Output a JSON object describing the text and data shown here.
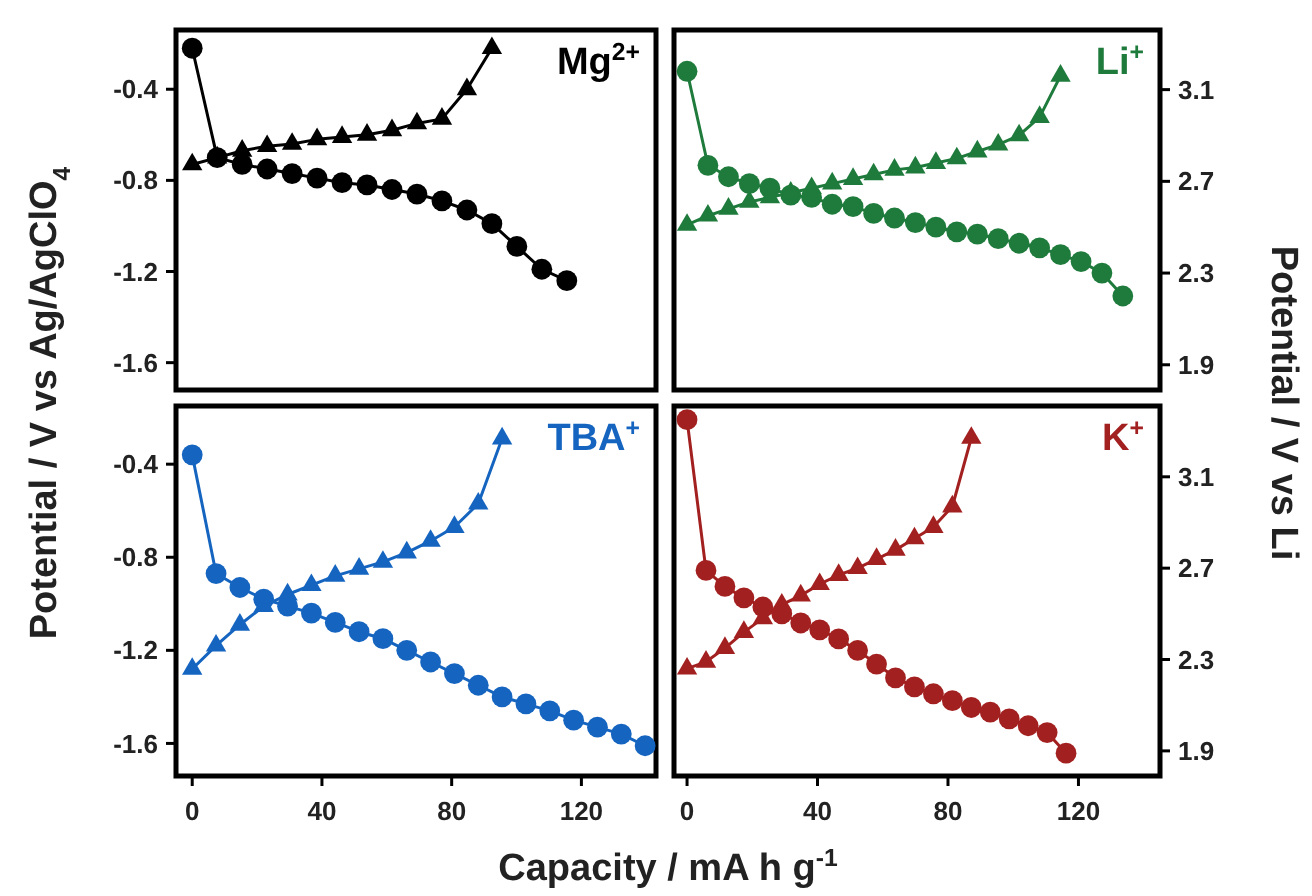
{
  "chart_data": [
    {
      "type": "line",
      "title": "Mg$^{2+}$",
      "ylabel": "Potential / V vs Ag/AgClO$_{4}$",
      "xlim": [
        -5,
        143
      ],
      "ylim": [
        -1.72,
        -0.14
      ],
      "xticks": [
        0,
        40,
        80,
        120
      ],
      "yticks": [
        -0.4,
        -0.8,
        -1.2,
        -1.6
      ],
      "tick_labels": "y",
      "line_style": "solid",
      "series": [
        {
          "color": "#000000",
          "marker": "circle",
          "x": [
            0,
            7.7,
            15.4,
            23.1,
            30.8,
            38.5,
            46.2,
            53.9,
            61.6,
            69.3,
            77,
            84.7,
            92.4,
            100.1,
            107.8,
            115.5
          ],
          "values": [
            -0.22,
            -0.7,
            -0.73,
            -0.75,
            -0.77,
            -0.79,
            -0.81,
            -0.82,
            -0.84,
            -0.86,
            -0.89,
            -0.93,
            -0.99,
            -1.09,
            -1.19,
            -1.24
          ]
        },
        {
          "color": "#000000",
          "marker": "triangle",
          "x": [
            0,
            7.7,
            15.4,
            23.1,
            30.8,
            38.5,
            46.2,
            53.9,
            61.6,
            69.3,
            77,
            84.7,
            92.4
          ],
          "values": [
            -0.73,
            -0.7,
            -0.67,
            -0.65,
            -0.64,
            -0.62,
            -0.61,
            -0.6,
            -0.58,
            -0.55,
            -0.53,
            -0.4,
            -0.22
          ]
        }
      ]
    },
    {
      "type": "line",
      "title": "Li$^{+}$",
      "ylabel": "Potential / V vs Li",
      "xlim": [
        -4,
        145
      ],
      "ylim": [
        1.79,
        3.36
      ],
      "xticks": [
        0,
        40,
        80,
        120
      ],
      "yticks": [
        3.1,
        2.7,
        2.3,
        1.9
      ],
      "tick_labels": "y",
      "line_style": "solid",
      "series": [
        {
          "color": "#1e7b3c",
          "marker": "circle",
          "x": [
            0,
            6.4,
            12.7,
            19.1,
            25.4,
            31.8,
            38.2,
            44.5,
            50.9,
            57.2,
            63.6,
            70,
            76.3,
            82.7,
            89,
            95.4,
            101.8,
            108.1,
            114.5,
            120.8,
            127.2,
            133.6
          ],
          "values": [
            3.18,
            2.77,
            2.72,
            2.69,
            2.67,
            2.64,
            2.63,
            2.6,
            2.59,
            2.56,
            2.54,
            2.52,
            2.5,
            2.48,
            2.47,
            2.45,
            2.43,
            2.41,
            2.38,
            2.35,
            2.3,
            2.2
          ]
        },
        {
          "color": "#1e7b3c",
          "marker": "triangle",
          "x": [
            0,
            6.4,
            12.7,
            19.1,
            25.4,
            31.8,
            38.2,
            44.5,
            50.9,
            57.2,
            63.6,
            70,
            76.3,
            82.7,
            89,
            95.4,
            101.8,
            108.1,
            114.5
          ],
          "values": [
            2.51,
            2.55,
            2.58,
            2.61,
            2.63,
            2.65,
            2.67,
            2.69,
            2.71,
            2.73,
            2.75,
            2.76,
            2.78,
            2.8,
            2.83,
            2.86,
            2.9,
            2.98,
            3.16
          ]
        }
      ]
    },
    {
      "type": "line",
      "title": "TBA$^{+}$",
      "xlabel": "Capacity / mA h g$^{-1}$",
      "xlim": [
        -5,
        143
      ],
      "ylim": [
        -1.74,
        -0.15
      ],
      "xticks": [
        0,
        40,
        80,
        120
      ],
      "yticks": [
        -0.4,
        -0.8,
        -1.2,
        -1.6
      ],
      "line_style": "solid",
      "series": [
        {
          "color": "#1565c0",
          "marker": "circle",
          "x": [
            0,
            7.35,
            14.7,
            22.05,
            29.4,
            36.75,
            44.1,
            51.45,
            58.8,
            66.15,
            73.5,
            80.85,
            88.2,
            95.55,
            102.9,
            110.25,
            117.6,
            124.95,
            132.3,
            139.65
          ],
          "values": [
            -0.36,
            -0.87,
            -0.93,
            -0.98,
            -1.01,
            -1.04,
            -1.08,
            -1.12,
            -1.15,
            -1.2,
            -1.25,
            -1.3,
            -1.35,
            -1.4,
            -1.43,
            -1.46,
            -1.5,
            -1.53,
            -1.56,
            -1.61
          ]
        },
        {
          "color": "#1565c0",
          "marker": "triangle",
          "x": [
            0,
            7.35,
            14.7,
            22.05,
            29.4,
            36.75,
            44.1,
            51.45,
            58.8,
            66.15,
            73.5,
            80.85,
            88.2,
            95.55
          ],
          "values": [
            -1.28,
            -1.18,
            -1.09,
            -1.01,
            -0.96,
            -0.92,
            -0.88,
            -0.85,
            -0.82,
            -0.78,
            -0.73,
            -0.67,
            -0.57,
            -0.29
          ]
        }
      ]
    },
    {
      "type": "line",
      "title": "K$^{+}$",
      "xlim": [
        -4,
        145
      ],
      "ylim": [
        1.79,
        3.41
      ],
      "xticks": [
        0,
        40,
        80,
        120
      ],
      "yticks": [
        3.1,
        2.7,
        2.3,
        1.9
      ],
      "line_style": "solid",
      "series": [
        {
          "color": "#a32020",
          "marker": "circle",
          "x": [
            0,
            5.81,
            11.62,
            17.43,
            23.24,
            29.05,
            34.86,
            40.67,
            46.48,
            52.29,
            58.1,
            63.91,
            69.72,
            75.53,
            81.34,
            87.15,
            92.96,
            98.77,
            104.58,
            110.39,
            116.2
          ],
          "values": [
            3.35,
            2.69,
            2.62,
            2.57,
            2.53,
            2.5,
            2.46,
            2.43,
            2.39,
            2.34,
            2.28,
            2.22,
            2.18,
            2.15,
            2.12,
            2.09,
            2.07,
            2.04,
            2.01,
            1.98,
            1.89
          ]
        },
        {
          "color": "#a32020",
          "marker": "triangle",
          "x": [
            0,
            5.81,
            11.62,
            17.43,
            23.24,
            29.05,
            34.86,
            40.67,
            46.48,
            52.29,
            58.1,
            63.91,
            69.72,
            75.53,
            81.34,
            87.15
          ],
          "values": [
            2.26,
            2.29,
            2.35,
            2.42,
            2.48,
            2.54,
            2.58,
            2.63,
            2.67,
            2.7,
            2.74,
            2.78,
            2.83,
            2.88,
            2.97,
            3.27
          ]
        }
      ]
    }
  ]
}
